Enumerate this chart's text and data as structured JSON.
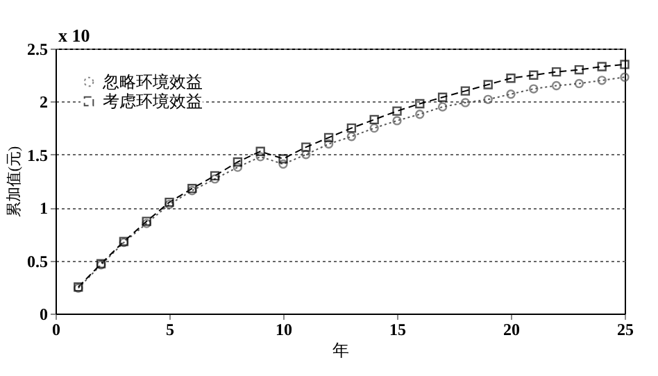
{
  "chart_data": {
    "type": "line",
    "xlabel": "年",
    "ylabel": "累加值(元)",
    "annotations": [
      "x 10"
    ],
    "x": [
      1,
      2,
      3,
      4,
      5,
      6,
      7,
      8,
      9,
      10,
      11,
      12,
      13,
      14,
      15,
      16,
      17,
      18,
      19,
      20,
      21,
      22,
      23,
      24,
      25
    ],
    "series": [
      {
        "name": "忽略环境效益",
        "color": "#555555",
        "marker": "circle",
        "line_style": "dotted",
        "values": [
          0.24,
          0.46,
          0.67,
          0.85,
          1.03,
          1.16,
          1.27,
          1.38,
          1.48,
          1.41,
          1.5,
          1.6,
          1.67,
          1.75,
          1.82,
          1.88,
          1.95,
          1.99,
          2.02,
          2.07,
          2.12,
          2.15,
          2.17,
          2.2,
          2.23
        ]
      },
      {
        "name": "考虑环境效益",
        "color": "#000000",
        "marker": "square",
        "line_style": "dashed",
        "values": [
          0.25,
          0.47,
          0.68,
          0.87,
          1.05,
          1.18,
          1.3,
          1.43,
          1.53,
          1.46,
          1.57,
          1.66,
          1.75,
          1.83,
          1.91,
          1.98,
          2.04,
          2.1,
          2.16,
          2.22,
          2.25,
          2.28,
          2.3,
          2.33,
          2.35
        ]
      }
    ],
    "xlim": [
      0,
      25
    ],
    "xticks": [
      0,
      5,
      10,
      15,
      20,
      25
    ],
    "ylim": [
      0,
      2.5
    ],
    "yticks": [
      0,
      0.5,
      1,
      1.5,
      2,
      2.5
    ],
    "grid": "y",
    "legend": "top left"
  }
}
